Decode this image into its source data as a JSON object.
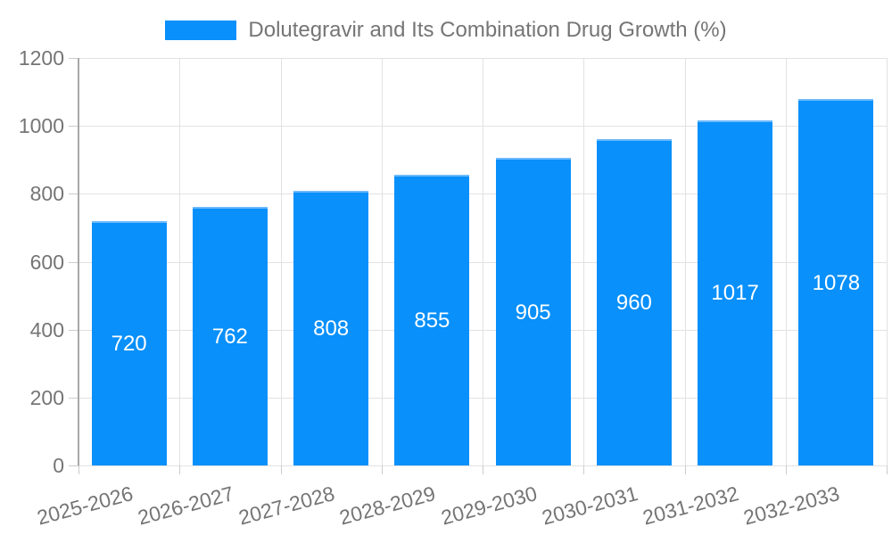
{
  "chart_data": {
    "type": "bar",
    "title": "Dolutegravir and Its Combination Drug Growth (%)",
    "legend_position": "top",
    "categories": [
      "2025-2026",
      "2026-2027",
      "2027-2028",
      "2028-2029",
      "2029-2030",
      "2030-2031",
      "2031-2032",
      "2032-2033"
    ],
    "values": [
      720,
      762,
      808,
      855,
      905,
      960,
      1017,
      1078
    ],
    "xlabel": "",
    "ylabel": "",
    "ylim": [
      0,
      1200
    ],
    "yticks": [
      0,
      200,
      400,
      600,
      800,
      1000,
      1200
    ],
    "grid": true,
    "value_labels": "centered-in-bar",
    "colors": {
      "bar": "#0990fa",
      "bar_edge": "#6db9fb",
      "bar_value_label": "#ffffff",
      "axis_text": "#757575",
      "gridline": "#e2e2e2",
      "axis_line": "#a8a8a8",
      "tick": "#cccccc",
      "background": "#ffffff"
    }
  }
}
